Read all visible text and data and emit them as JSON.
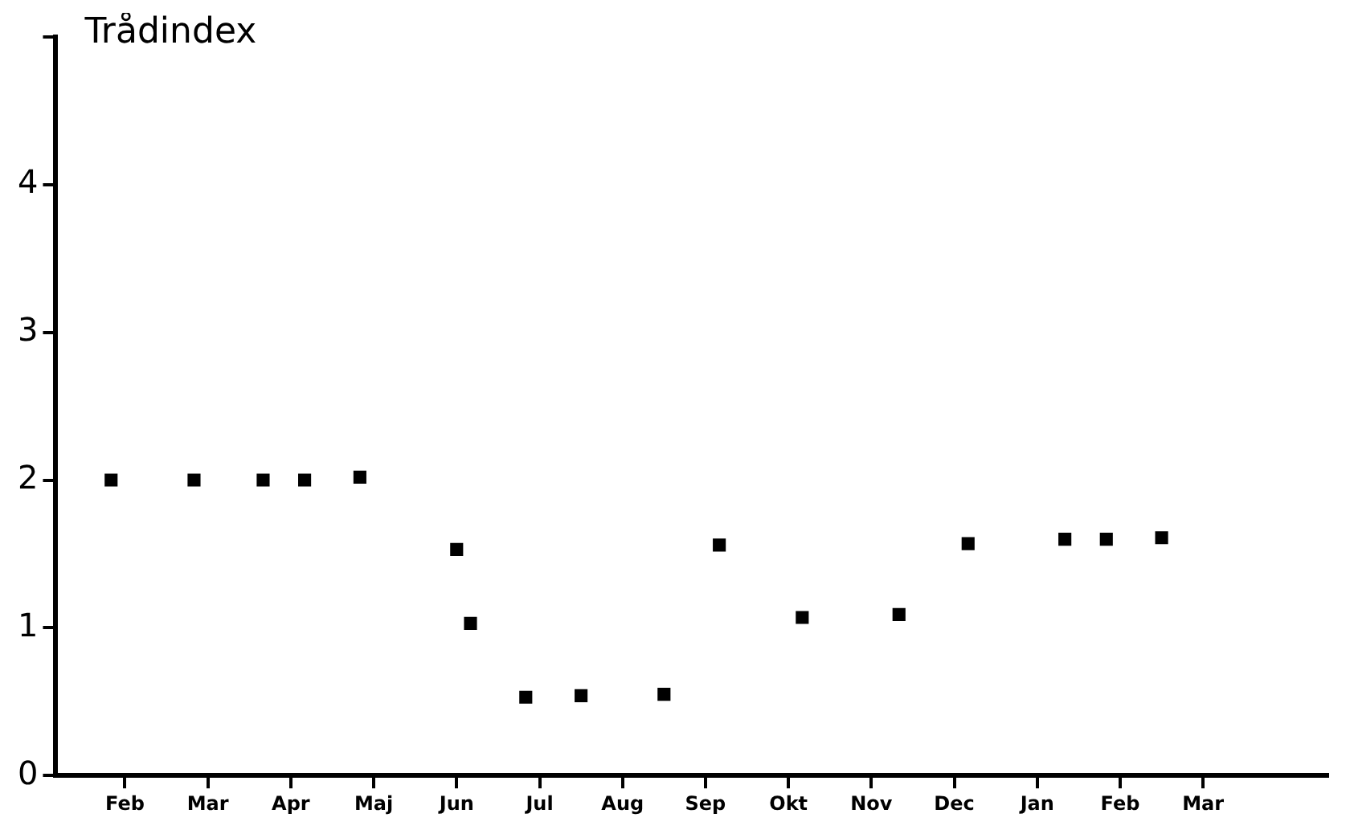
{
  "chart_data": {
    "type": "scatter",
    "ylabel": "Trådindex",
    "marker": "square",
    "grid": false,
    "legend": false,
    "categories": [
      null,
      null,
      null,
      null,
      null,
      "Feb",
      null,
      null,
      null,
      null,
      null,
      "Mar",
      null,
      null,
      null,
      null,
      null,
      "Apr",
      null,
      null,
      null,
      null,
      null,
      "Maj",
      null,
      null,
      null,
      null,
      null,
      "Jun",
      null,
      null,
      null,
      null,
      null,
      "Jul",
      null,
      null,
      null,
      null,
      null,
      "Aug",
      null,
      null,
      null,
      null,
      null,
      "Sep",
      null,
      null,
      null,
      null,
      null,
      "Okt",
      null,
      null,
      null,
      null,
      null,
      "Nov",
      null,
      null,
      null,
      null,
      null,
      "Dec",
      null,
      null,
      null,
      null,
      null,
      "Jan",
      null,
      null,
      null,
      null,
      null,
      "Feb",
      null,
      null,
      null,
      null,
      null,
      "Mar",
      null,
      null,
      null,
      null,
      null,
      null,
      null,
      null,
      null
    ],
    "series": [
      {
        "color": "#000000",
        "values": [
          null,
          null,
          null,
          null,
          2.0,
          null,
          null,
          null,
          null,
          null,
          2.0,
          null,
          null,
          null,
          null,
          2.0,
          null,
          null,
          2.0,
          null,
          null,
          null,
          2.02,
          null,
          null,
          null,
          null,
          null,
          null,
          1.53,
          1.03,
          null,
          null,
          null,
          0.53,
          null,
          null,
          null,
          0.54,
          null,
          null,
          null,
          null,
          null,
          0.55,
          null,
          null,
          null,
          1.56,
          null,
          null,
          null,
          null,
          null,
          1.07,
          null,
          null,
          null,
          null,
          null,
          null,
          1.09,
          null,
          null,
          null,
          null,
          1.57,
          null,
          null,
          null,
          null,
          null,
          null,
          1.6,
          null,
          null,
          1.6,
          null,
          null,
          null,
          1.61,
          null,
          null,
          null,
          null,
          null,
          null,
          null,
          null,
          null,
          null,
          null,
          null
        ]
      }
    ],
    "ylim": [
      0,
      5
    ],
    "yticks": [
      0,
      1,
      2,
      3,
      4,
      {
        "value": 5,
        "label": null
      }
    ]
  }
}
